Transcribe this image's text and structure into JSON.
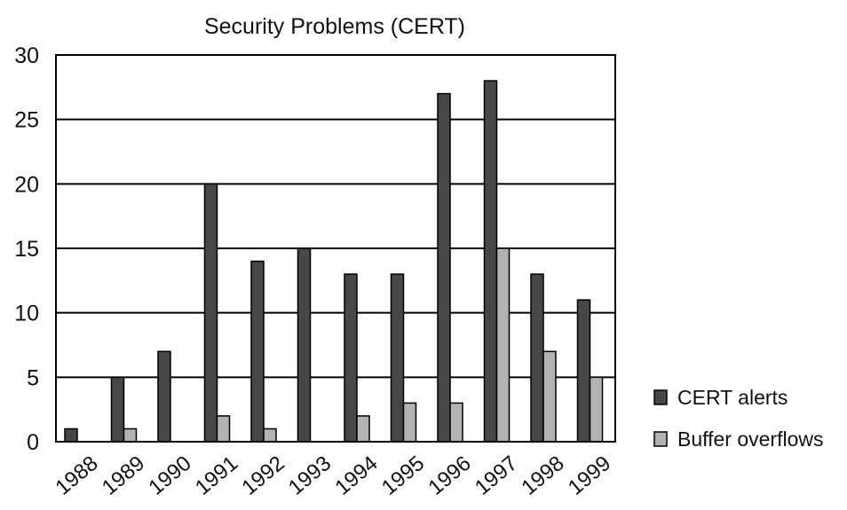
{
  "chart_data": {
    "type": "bar",
    "title": "Security Problems (CERT)",
    "xlabel": "",
    "ylabel": "",
    "categories": [
      "1988",
      "1989",
      "1990",
      "1991",
      "1992",
      "1993",
      "1994",
      "1995",
      "1996",
      "1997",
      "1998",
      "1999"
    ],
    "series": [
      {
        "name": "CERT alerts",
        "color": "#474747",
        "values": [
          1,
          5,
          7,
          20,
          14,
          15,
          13,
          13,
          27,
          28,
          13,
          11
        ]
      },
      {
        "name": "Buffer overflows",
        "color": "#b3b3b3",
        "values": [
          0,
          1,
          0,
          2,
          1,
          0,
          2,
          3,
          3,
          15,
          7,
          5
        ]
      }
    ],
    "ylim": [
      0,
      30
    ],
    "yticks": [
      0,
      5,
      10,
      15,
      20,
      25,
      30
    ],
    "grid": true,
    "legend_position": "right"
  }
}
